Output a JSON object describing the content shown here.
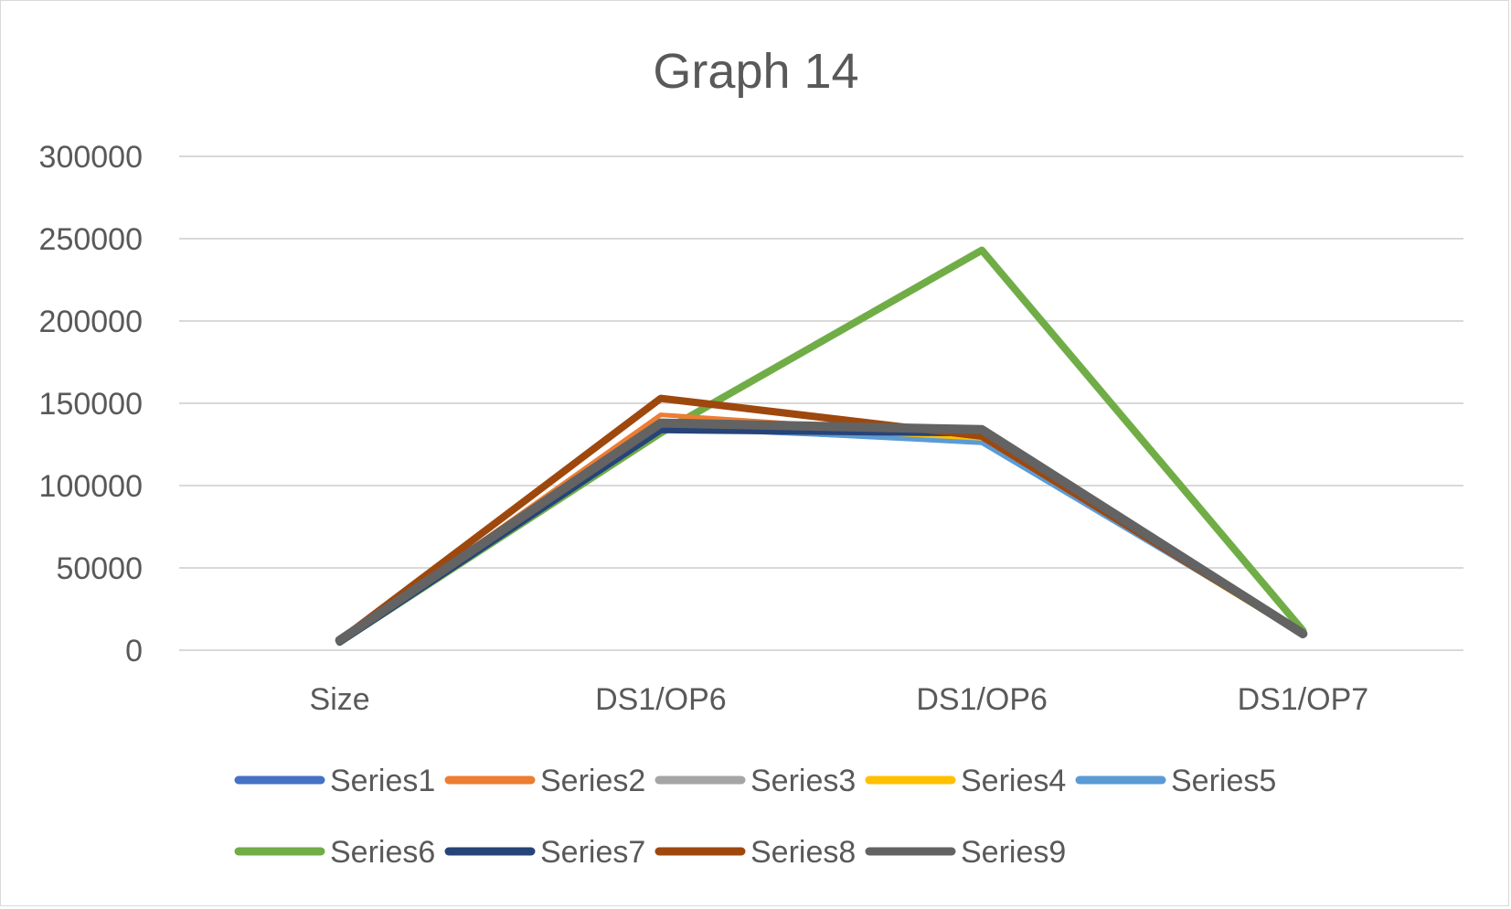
{
  "chart_data": {
    "type": "line",
    "title": "Graph 14",
    "xlabel": "",
    "ylabel": "",
    "categories": [
      "Size",
      "DS1/OP6",
      "DS1/OP6",
      "DS1/OP7"
    ],
    "ylim": [
      0,
      300000
    ],
    "yticks": [
      "0",
      "50000",
      "100000",
      "150000",
      "200000",
      "250000",
      "300000"
    ],
    "grid": true,
    "legend_position": "bottom",
    "series": [
      {
        "name": "Series1",
        "color": "#4472C4",
        "values": [
          5000,
          135000,
          127000,
          10000
        ]
      },
      {
        "name": "Series2",
        "color": "#ED7D31",
        "values": [
          5000,
          143000,
          130000,
          9000
        ]
      },
      {
        "name": "Series3",
        "color": "#A5A5A5",
        "values": [
          5000,
          138000,
          129000,
          10000
        ]
      },
      {
        "name": "Series4",
        "color": "#FFC000",
        "values": [
          4000,
          137000,
          128000,
          9000
        ]
      },
      {
        "name": "Series5",
        "color": "#5B9BD5",
        "values": [
          5000,
          136000,
          126000,
          10000
        ]
      },
      {
        "name": "Series6",
        "color": "#70AD47",
        "values": [
          5000,
          132000,
          243000,
          12000
        ]
      },
      {
        "name": "Series7",
        "color": "#264478",
        "values": [
          5000,
          134000,
          132000,
          10000
        ]
      },
      {
        "name": "Series8",
        "color": "#9E480E",
        "values": [
          6000,
          153000,
          130000,
          10000
        ]
      },
      {
        "name": "Series9",
        "color": "#636363",
        "values": [
          6000,
          138000,
          134000,
          10000
        ]
      }
    ]
  }
}
